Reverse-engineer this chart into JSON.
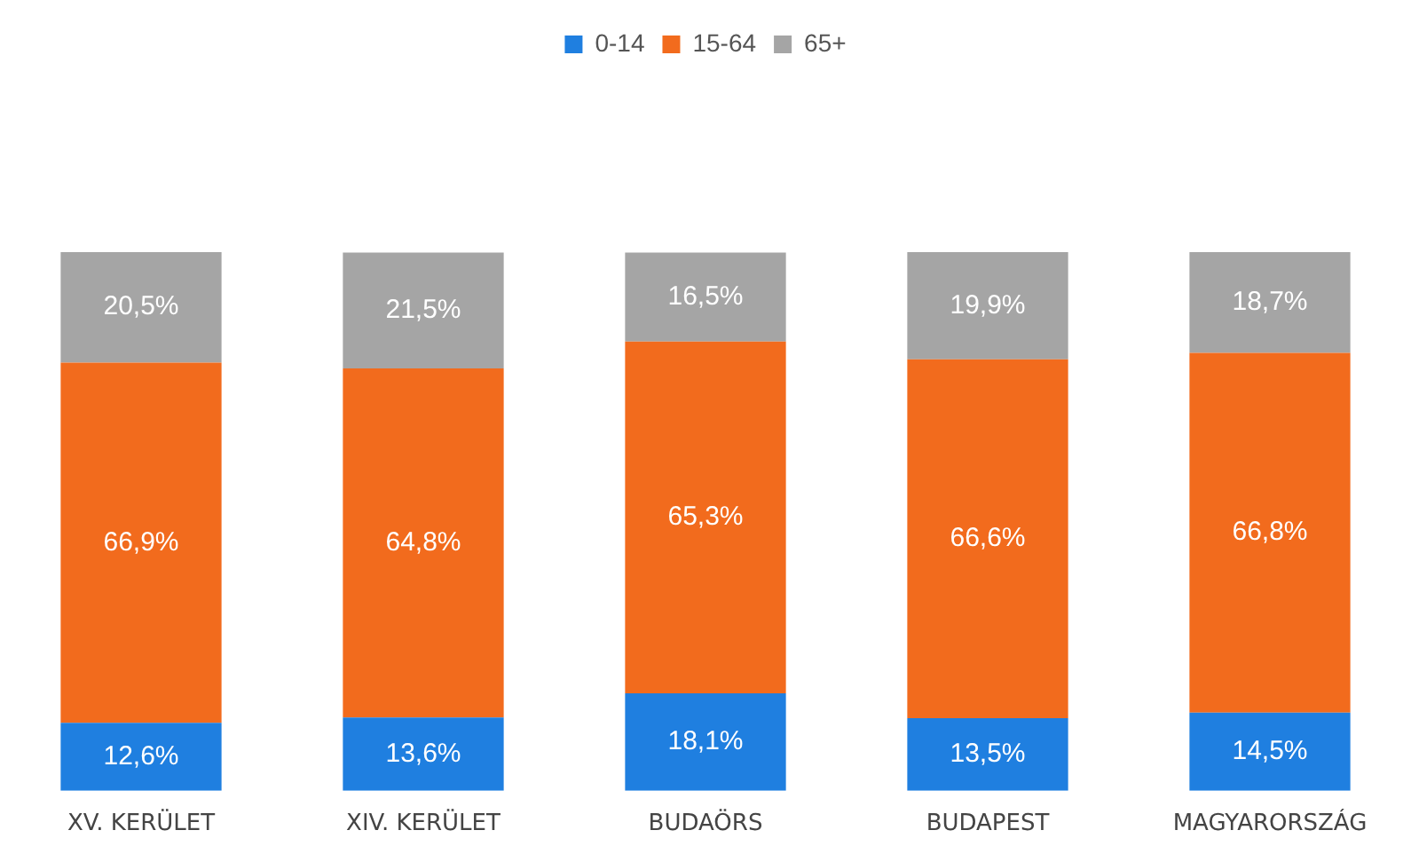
{
  "chart_data": {
    "type": "bar",
    "stacked": true,
    "legend": "top",
    "ylim": [
      0,
      100
    ],
    "tick_labels": "x",
    "categories": [
      "XV. KERÜLET",
      "XIV. KERÜLET",
      "BUDAÖRS",
      "BUDAPEST",
      "MAGYARORSZÁG"
    ],
    "series": [
      {
        "name": "0-14",
        "color": "#1f7fe0",
        "values": [
          12.6,
          13.6,
          18.1,
          13.5,
          14.5
        ],
        "value_labels": [
          "12,6%",
          "13,6%",
          "18,1%",
          "13,5%",
          "14,5%"
        ]
      },
      {
        "name": "15-64",
        "color": "#f26b1d",
        "values": [
          66.9,
          64.8,
          65.3,
          66.6,
          66.8
        ],
        "value_labels": [
          "66,9%",
          "64,8%",
          "65,3%",
          "66,6%",
          "66,8%"
        ]
      },
      {
        "name": "65+",
        "color": "#a5a5a5",
        "values": [
          20.5,
          21.5,
          16.5,
          19.9,
          18.7
        ],
        "value_labels": [
          "20,5%",
          "21,5%",
          "16,5%",
          "19,9%",
          "18,7%"
        ]
      }
    ]
  }
}
